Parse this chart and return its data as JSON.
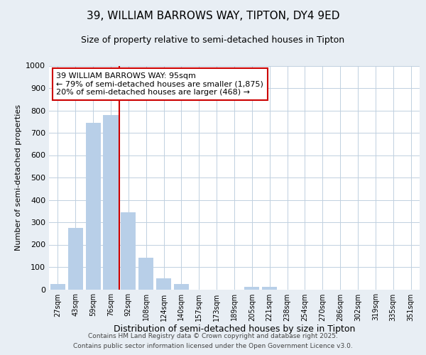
{
  "title1": "39, WILLIAM BARROWS WAY, TIPTON, DY4 9ED",
  "title2": "Size of property relative to semi-detached houses in Tipton",
  "xlabel": "Distribution of semi-detached houses by size in Tipton",
  "ylabel": "Number of semi-detached properties",
  "categories": [
    "27sqm",
    "43sqm",
    "59sqm",
    "76sqm",
    "92sqm",
    "108sqm",
    "124sqm",
    "140sqm",
    "157sqm",
    "173sqm",
    "189sqm",
    "205sqm",
    "221sqm",
    "238sqm",
    "254sqm",
    "270sqm",
    "286sqm",
    "302sqm",
    "319sqm",
    "335sqm",
    "351sqm"
  ],
  "values": [
    25,
    275,
    745,
    780,
    345,
    140,
    50,
    25,
    0,
    0,
    0,
    10,
    10,
    0,
    0,
    0,
    0,
    0,
    0,
    0,
    0
  ],
  "bar_color": "#b8cfe8",
  "vline_index": 4,
  "vline_color": "#cc0000",
  "annotation_line1": "39 WILLIAM BARROWS WAY: 95sqm",
  "annotation_line2": "← 79% of semi-detached houses are smaller (1,875)",
  "annotation_line3": "20% of semi-detached houses are larger (468) →",
  "annotation_box_color": "#cc0000",
  "ylim": [
    0,
    1000
  ],
  "yticks": [
    0,
    100,
    200,
    300,
    400,
    500,
    600,
    700,
    800,
    900,
    1000
  ],
  "footer1": "Contains HM Land Registry data © Crown copyright and database right 2025.",
  "footer2": "Contains public sector information licensed under the Open Government Licence v3.0.",
  "fig_bg_color": "#e8eef4",
  "plot_bg_color": "#ffffff",
  "grid_color": "#c0d0e0",
  "title1_fontsize": 11,
  "title2_fontsize": 9
}
